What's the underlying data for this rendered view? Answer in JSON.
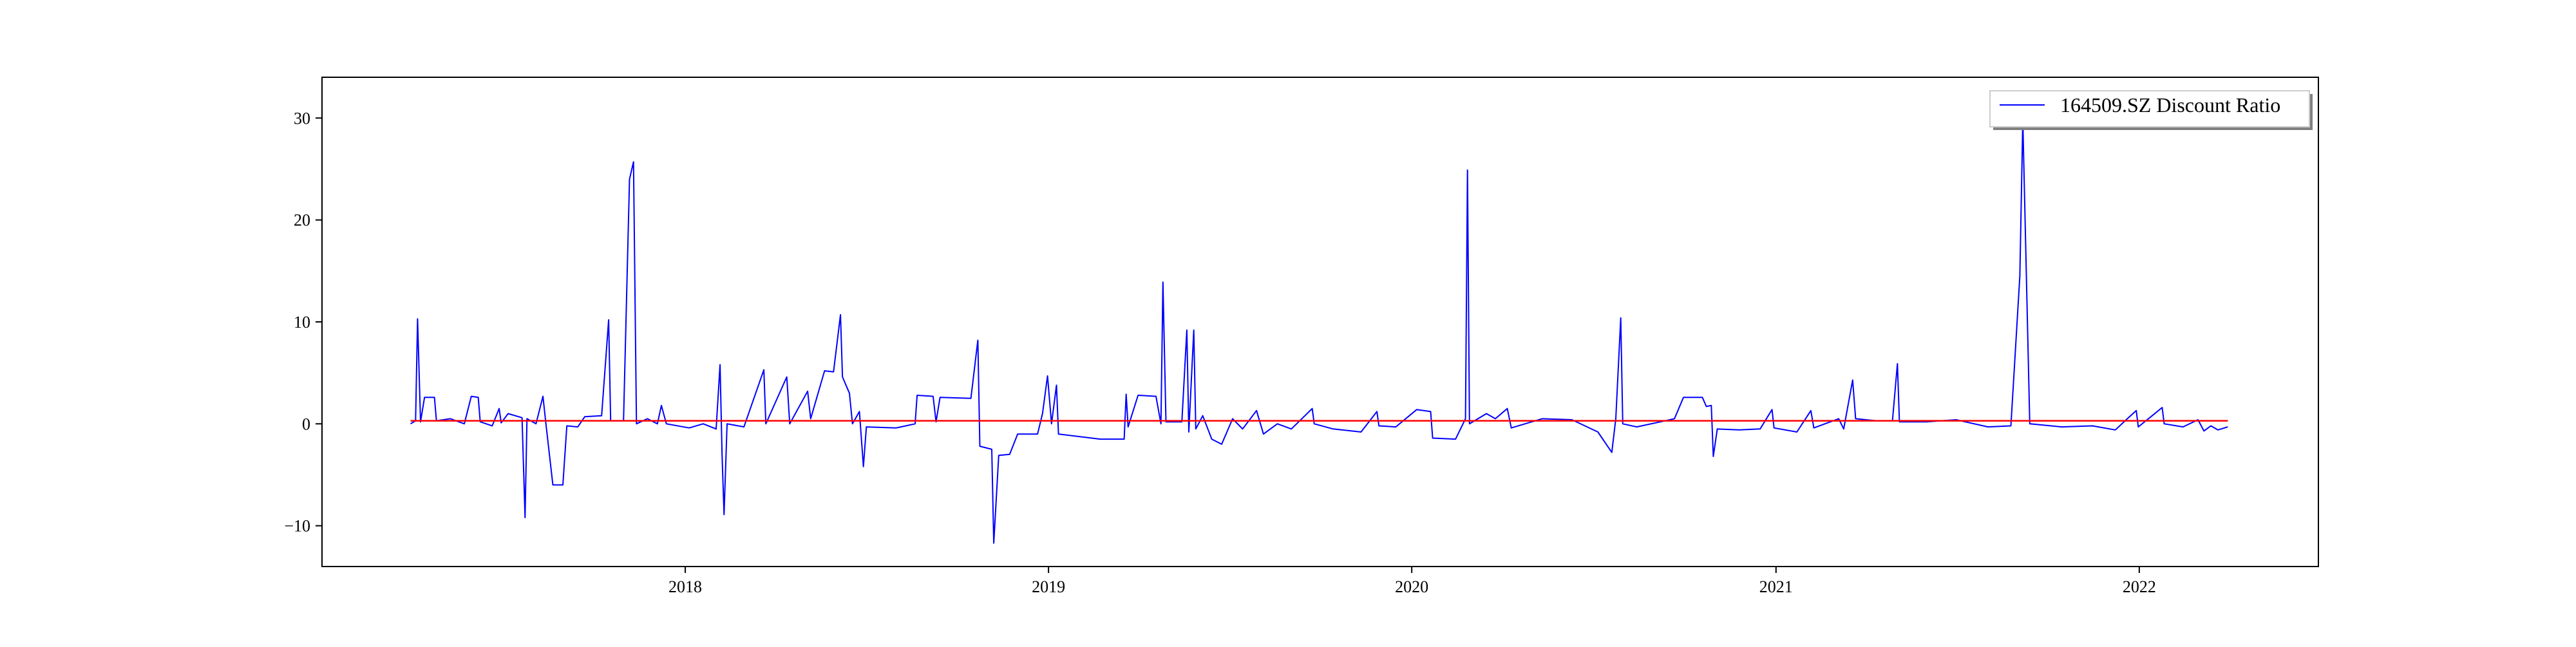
{
  "chart_data": {
    "type": "line",
    "title": "",
    "xlabel": "",
    "ylabel": "",
    "x_axis": {
      "type": "date",
      "range": [
        "2017-01-01",
        "2022-06-30"
      ],
      "ticks": [
        {
          "value": "2018-01-01",
          "label": "2018"
        },
        {
          "value": "2019-01-01",
          "label": "2019"
        },
        {
          "value": "2020-01-01",
          "label": "2020"
        },
        {
          "value": "2021-01-01",
          "label": "2021"
        },
        {
          "value": "2022-01-01",
          "label": "2022"
        }
      ]
    },
    "y_axis": {
      "range": [
        -14,
        34
      ],
      "ticks": [
        {
          "value": -10,
          "label": "−10"
        },
        {
          "value": 0,
          "label": "0"
        },
        {
          "value": 10,
          "label": "10"
        },
        {
          "value": 20,
          "label": "20"
        },
        {
          "value": 30,
          "label": "30"
        }
      ]
    },
    "grid": false,
    "legend": {
      "position": "top-right",
      "entries": [
        {
          "label": "164509.SZ Discount Ratio",
          "color": "#0000ff"
        }
      ]
    },
    "series": [
      {
        "name": "164509.SZ Discount Ratio",
        "color": "#0000ff",
        "points": [
          [
            "2017-03-31",
            0.0
          ],
          [
            "2017-04-05",
            0.3
          ],
          [
            "2017-04-07",
            10.3
          ],
          [
            "2017-04-10",
            0.2
          ],
          [
            "2017-04-14",
            2.6
          ],
          [
            "2017-04-24",
            2.6
          ],
          [
            "2017-04-26",
            0.3
          ],
          [
            "2017-05-10",
            0.5
          ],
          [
            "2017-05-24",
            0.0
          ],
          [
            "2017-05-31",
            2.7
          ],
          [
            "2017-06-07",
            2.6
          ],
          [
            "2017-06-09",
            0.2
          ],
          [
            "2017-06-21",
            -0.2
          ],
          [
            "2017-06-28",
            1.5
          ],
          [
            "2017-06-30",
            0.1
          ],
          [
            "2017-07-07",
            1.0
          ],
          [
            "2017-07-21",
            0.6
          ],
          [
            "2017-07-24",
            -9.2
          ],
          [
            "2017-07-26",
            0.5
          ],
          [
            "2017-08-04",
            0.0
          ],
          [
            "2017-08-11",
            2.7
          ],
          [
            "2017-08-14",
            0.0
          ],
          [
            "2017-08-21",
            -6.0
          ],
          [
            "2017-08-31",
            -6.0
          ],
          [
            "2017-09-04",
            -0.2
          ],
          [
            "2017-09-15",
            -0.3
          ],
          [
            "2017-09-22",
            0.7
          ],
          [
            "2017-10-09",
            0.8
          ],
          [
            "2017-10-16",
            10.2
          ],
          [
            "2017-10-18",
            0.3
          ],
          [
            "2017-10-31",
            0.3
          ],
          [
            "2017-11-06",
            24.0
          ],
          [
            "2017-11-10",
            25.7
          ],
          [
            "2017-11-13",
            0.0
          ],
          [
            "2017-11-24",
            0.5
          ],
          [
            "2017-12-04",
            0.0
          ],
          [
            "2017-12-08",
            1.8
          ],
          [
            "2017-12-13",
            0.0
          ],
          [
            "2018-01-05",
            -0.4
          ],
          [
            "2018-01-19",
            0.0
          ],
          [
            "2018-02-01",
            -0.5
          ],
          [
            "2018-02-05",
            5.8
          ],
          [
            "2018-02-07",
            -3.0
          ],
          [
            "2018-02-09",
            -8.9
          ],
          [
            "2018-02-12",
            0.0
          ],
          [
            "2018-03-01",
            -0.3
          ],
          [
            "2018-03-21",
            5.3
          ],
          [
            "2018-03-23",
            0.0
          ],
          [
            "2018-04-13",
            4.6
          ],
          [
            "2018-04-16",
            0.0
          ],
          [
            "2018-05-04",
            3.2
          ],
          [
            "2018-05-07",
            0.5
          ],
          [
            "2018-05-21",
            5.2
          ],
          [
            "2018-05-30",
            5.1
          ],
          [
            "2018-06-06",
            10.7
          ],
          [
            "2018-06-08",
            4.6
          ],
          [
            "2018-06-15",
            3.0
          ],
          [
            "2018-06-18",
            0.0
          ],
          [
            "2018-06-25",
            1.2
          ],
          [
            "2018-06-29",
            -4.2
          ],
          [
            "2018-07-02",
            -0.3
          ],
          [
            "2018-08-01",
            -0.4
          ],
          [
            "2018-08-20",
            0.0
          ],
          [
            "2018-08-22",
            2.8
          ],
          [
            "2018-09-07",
            2.7
          ],
          [
            "2018-09-10",
            0.2
          ],
          [
            "2018-09-14",
            2.6
          ],
          [
            "2018-10-15",
            2.5
          ],
          [
            "2018-10-22",
            8.2
          ],
          [
            "2018-10-24",
            -2.2
          ],
          [
            "2018-11-05",
            -2.5
          ],
          [
            "2018-11-07",
            -11.7
          ],
          [
            "2018-11-12",
            -3.1
          ],
          [
            "2018-11-23",
            -3.0
          ],
          [
            "2018-12-01",
            -1.0
          ],
          [
            "2018-12-21",
            -1.0
          ],
          [
            "2018-12-26",
            1.0
          ],
          [
            "2018-12-31",
            4.7
          ],
          [
            "2019-01-04",
            0.0
          ],
          [
            "2019-01-09",
            3.8
          ],
          [
            "2019-01-11",
            -1.0
          ],
          [
            "2019-02-22",
            -1.5
          ],
          [
            "2019-03-18",
            -1.5
          ],
          [
            "2019-03-20",
            2.9
          ],
          [
            "2019-03-22",
            -0.3
          ],
          [
            "2019-04-01",
            2.8
          ],
          [
            "2019-04-19",
            2.7
          ],
          [
            "2019-04-24",
            0.0
          ],
          [
            "2019-04-26",
            13.9
          ],
          [
            "2019-04-29",
            0.2
          ],
          [
            "2019-05-15",
            0.2
          ],
          [
            "2019-05-20",
            9.2
          ],
          [
            "2019-05-22",
            -0.8
          ],
          [
            "2019-05-27",
            9.2
          ],
          [
            "2019-05-29",
            -0.5
          ],
          [
            "2019-06-05",
            0.8
          ],
          [
            "2019-06-14",
            -1.5
          ],
          [
            "2019-06-24",
            -2.0
          ],
          [
            "2019-07-05",
            0.5
          ],
          [
            "2019-07-15",
            -0.5
          ],
          [
            "2019-07-29",
            1.3
          ],
          [
            "2019-08-05",
            -1.0
          ],
          [
            "2019-08-19",
            0.0
          ],
          [
            "2019-09-02",
            -0.5
          ],
          [
            "2019-09-23",
            1.5
          ],
          [
            "2019-09-25",
            0.0
          ],
          [
            "2019-10-14",
            -0.5
          ],
          [
            "2019-11-11",
            -0.8
          ],
          [
            "2019-11-27",
            1.2
          ],
          [
            "2019-11-29",
            -0.2
          ],
          [
            "2019-12-16",
            -0.3
          ],
          [
            "2020-01-06",
            1.4
          ],
          [
            "2020-01-20",
            1.2
          ],
          [
            "2020-01-22",
            -1.4
          ],
          [
            "2020-02-14",
            -1.5
          ],
          [
            "2020-02-24",
            0.5
          ],
          [
            "2020-02-26",
            24.9
          ],
          [
            "2020-02-28",
            0.0
          ],
          [
            "2020-03-16",
            1.0
          ],
          [
            "2020-03-25",
            0.5
          ],
          [
            "2020-04-06",
            1.5
          ],
          [
            "2020-04-10",
            -0.4
          ],
          [
            "2020-05-11",
            0.5
          ],
          [
            "2020-06-10",
            0.4
          ],
          [
            "2020-07-06",
            -0.8
          ],
          [
            "2020-07-20",
            -2.8
          ],
          [
            "2020-07-24",
            0.5
          ],
          [
            "2020-07-29",
            10.4
          ],
          [
            "2020-07-31",
            0.0
          ],
          [
            "2020-08-14",
            -0.3
          ],
          [
            "2020-09-07",
            0.2
          ],
          [
            "2020-09-21",
            0.5
          ],
          [
            "2020-09-30",
            2.6
          ],
          [
            "2020-10-19",
            2.6
          ],
          [
            "2020-10-23",
            1.7
          ],
          [
            "2020-10-28",
            1.8
          ],
          [
            "2020-10-30",
            -3.2
          ],
          [
            "2020-11-03",
            -0.5
          ],
          [
            "2020-11-25",
            -0.6
          ],
          [
            "2020-12-16",
            -0.5
          ],
          [
            "2020-12-28",
            1.4
          ],
          [
            "2020-12-30",
            -0.4
          ],
          [
            "2021-01-22",
            -0.8
          ],
          [
            "2021-02-05",
            1.3
          ],
          [
            "2021-02-08",
            -0.4
          ],
          [
            "2021-03-05",
            0.5
          ],
          [
            "2021-03-10",
            -0.5
          ],
          [
            "2021-03-19",
            4.3
          ],
          [
            "2021-03-22",
            0.5
          ],
          [
            "2021-04-12",
            0.3
          ],
          [
            "2021-04-28",
            0.3
          ],
          [
            "2021-05-03",
            5.9
          ],
          [
            "2021-05-05",
            0.2
          ],
          [
            "2021-06-01",
            0.2
          ],
          [
            "2021-07-01",
            0.4
          ],
          [
            "2021-08-02",
            -0.3
          ],
          [
            "2021-08-25",
            -0.2
          ],
          [
            "2021-09-03",
            14.5
          ],
          [
            "2021-09-06",
            29.8
          ],
          [
            "2021-09-13",
            0.0
          ],
          [
            "2021-10-15",
            -0.3
          ],
          [
            "2021-11-15",
            -0.2
          ],
          [
            "2021-12-08",
            -0.6
          ],
          [
            "2021-12-20",
            0.5
          ],
          [
            "2021-12-29",
            1.3
          ],
          [
            "2021-12-31",
            -0.3
          ],
          [
            "2022-01-14",
            0.8
          ],
          [
            "2022-01-24",
            1.6
          ],
          [
            "2022-01-26",
            0.0
          ],
          [
            "2022-02-14",
            -0.3
          ],
          [
            "2022-03-01",
            0.4
          ],
          [
            "2022-03-07",
            -0.7
          ],
          [
            "2022-03-14",
            -0.2
          ],
          [
            "2022-03-21",
            -0.6
          ],
          [
            "2022-03-31",
            -0.3
          ]
        ]
      },
      {
        "name": "",
        "color": "#ff0000",
        "points": [
          [
            "2017-03-31",
            0.3
          ],
          [
            "2022-03-31",
            0.3
          ]
        ]
      }
    ]
  }
}
